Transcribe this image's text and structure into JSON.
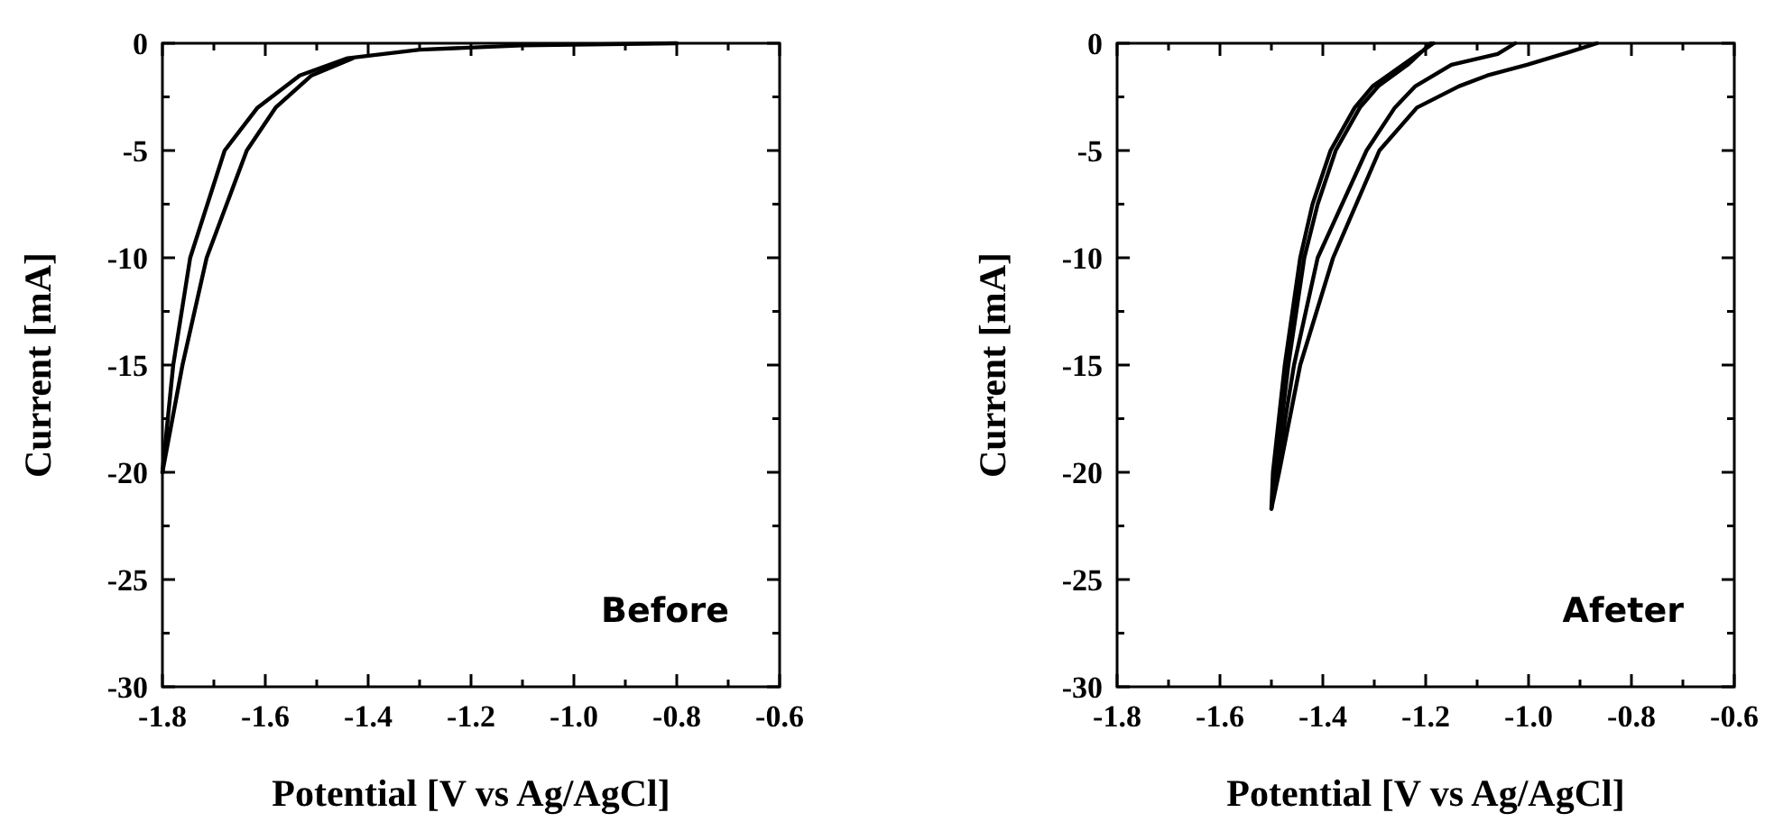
{
  "chart_data": [
    {
      "type": "line",
      "xlabel": "Potential [V vs Ag/AgCl]",
      "ylabel": "Current [mA]",
      "annotations": [
        "Before"
      ],
      "xlim": [
        -1.8,
        -0.6
      ],
      "ylim": [
        -30,
        0
      ],
      "xticks": [
        -1.8,
        {
          "value": -1.7,
          "label": null
        },
        -1.6,
        {
          "value": -1.5,
          "label": null
        },
        -1.4,
        {
          "value": -1.3,
          "label": null
        },
        -1.2,
        {
          "value": -1.1,
          "label": null
        },
        {
          "value": -1,
          "label": "-1.0"
        },
        {
          "value": -0.9,
          "label": null
        },
        -0.8,
        {
          "value": -0.7,
          "label": null
        },
        -0.6
      ],
      "yticks": [
        -30,
        {
          "value": -27.5,
          "label": null
        },
        -25,
        {
          "value": -22.5,
          "label": null
        },
        -20,
        {
          "value": -17.5,
          "label": null
        },
        -15,
        {
          "value": -12.5,
          "label": null
        },
        -10,
        {
          "value": -7.5,
          "label": null
        },
        -5,
        {
          "value": -2.5,
          "label": null
        },
        0
      ],
      "grid": false,
      "series": [
        {
          "color": "#000000",
          "x": [
            -1.8,
            -1.779,
            -1.746,
            -1.679,
            -1.615,
            -1.533,
            -1.44,
            -1.3,
            -1.1,
            -0.8
          ],
          "values": [
            -20,
            -15,
            -10,
            -5,
            -3,
            -1.5,
            -0.7,
            -0.3,
            -0.1,
            0
          ]
        },
        {
          "color": "#000000",
          "x": [
            -1.8,
            -1.761,
            -1.714,
            -1.636,
            -1.58,
            -1.51,
            -1.43
          ],
          "values": [
            -20,
            -15,
            -10,
            -5,
            -3,
            -1.5,
            -0.7
          ]
        }
      ]
    },
    {
      "type": "line",
      "xlabel": "Potential [V vs Ag/AgCl]",
      "ylabel": "Current [mA]",
      "annotations": [
        "Afeter"
      ],
      "xlim": [
        -1.8,
        -0.6
      ],
      "ylim": [
        -30,
        0
      ],
      "xticks": [
        -1.8,
        {
          "value": -1.7,
          "label": null
        },
        -1.6,
        {
          "value": -1.5,
          "label": null
        },
        -1.4,
        {
          "value": -1.3,
          "label": null
        },
        -1.2,
        {
          "value": -1.1,
          "label": null
        },
        {
          "value": -1,
          "label": "-1.0"
        },
        {
          "value": -0.9,
          "label": null
        },
        -0.8,
        {
          "value": -0.7,
          "label": null
        },
        -0.6
      ],
      "yticks": [
        -30,
        {
          "value": -27.5,
          "label": null
        },
        -25,
        {
          "value": -22.5,
          "label": null
        },
        -20,
        {
          "value": -17.5,
          "label": null
        },
        -15,
        {
          "value": -12.5,
          "label": null
        },
        -10,
        {
          "value": -7.5,
          "label": null
        },
        -5,
        {
          "value": -2.5,
          "label": null
        },
        0
      ],
      "grid": false,
      "series": [
        {
          "color": "#000000",
          "x": [
            -1.185,
            -1.244,
            -1.303,
            -1.338,
            -1.385,
            -1.42,
            -1.444,
            -1.474,
            -1.497,
            -1.5,
            -1.492,
            -1.467,
            -1.436,
            -1.41,
            -1.375,
            -1.328,
            -1.292,
            -1.235,
            -1.19
          ],
          "values": [
            0,
            -1,
            -2,
            -3,
            -5,
            -7.5,
            -10,
            -15,
            -20,
            -21.7,
            -20,
            -15,
            -10,
            -7.5,
            -5,
            -3,
            -2,
            -1,
            0
          ]
        },
        {
          "color": "#000000",
          "x": [
            -1.026,
            -1.06,
            -1.15,
            -1.22,
            -1.26,
            -1.315,
            -1.41,
            -1.456,
            -1.49,
            -1.5,
            -1.485,
            -1.444,
            -1.38,
            -1.29,
            -1.217,
            -1.135,
            -1.08,
            -1.003,
            -0.92,
            -0.867
          ],
          "values": [
            0,
            -0.5,
            -1,
            -2,
            -3,
            -5,
            -10,
            -15,
            -20,
            -21.7,
            -20,
            -15,
            -10,
            -5,
            -3,
            -2,
            -1.5,
            -1,
            -0.4,
            0
          ]
        }
      ]
    }
  ]
}
